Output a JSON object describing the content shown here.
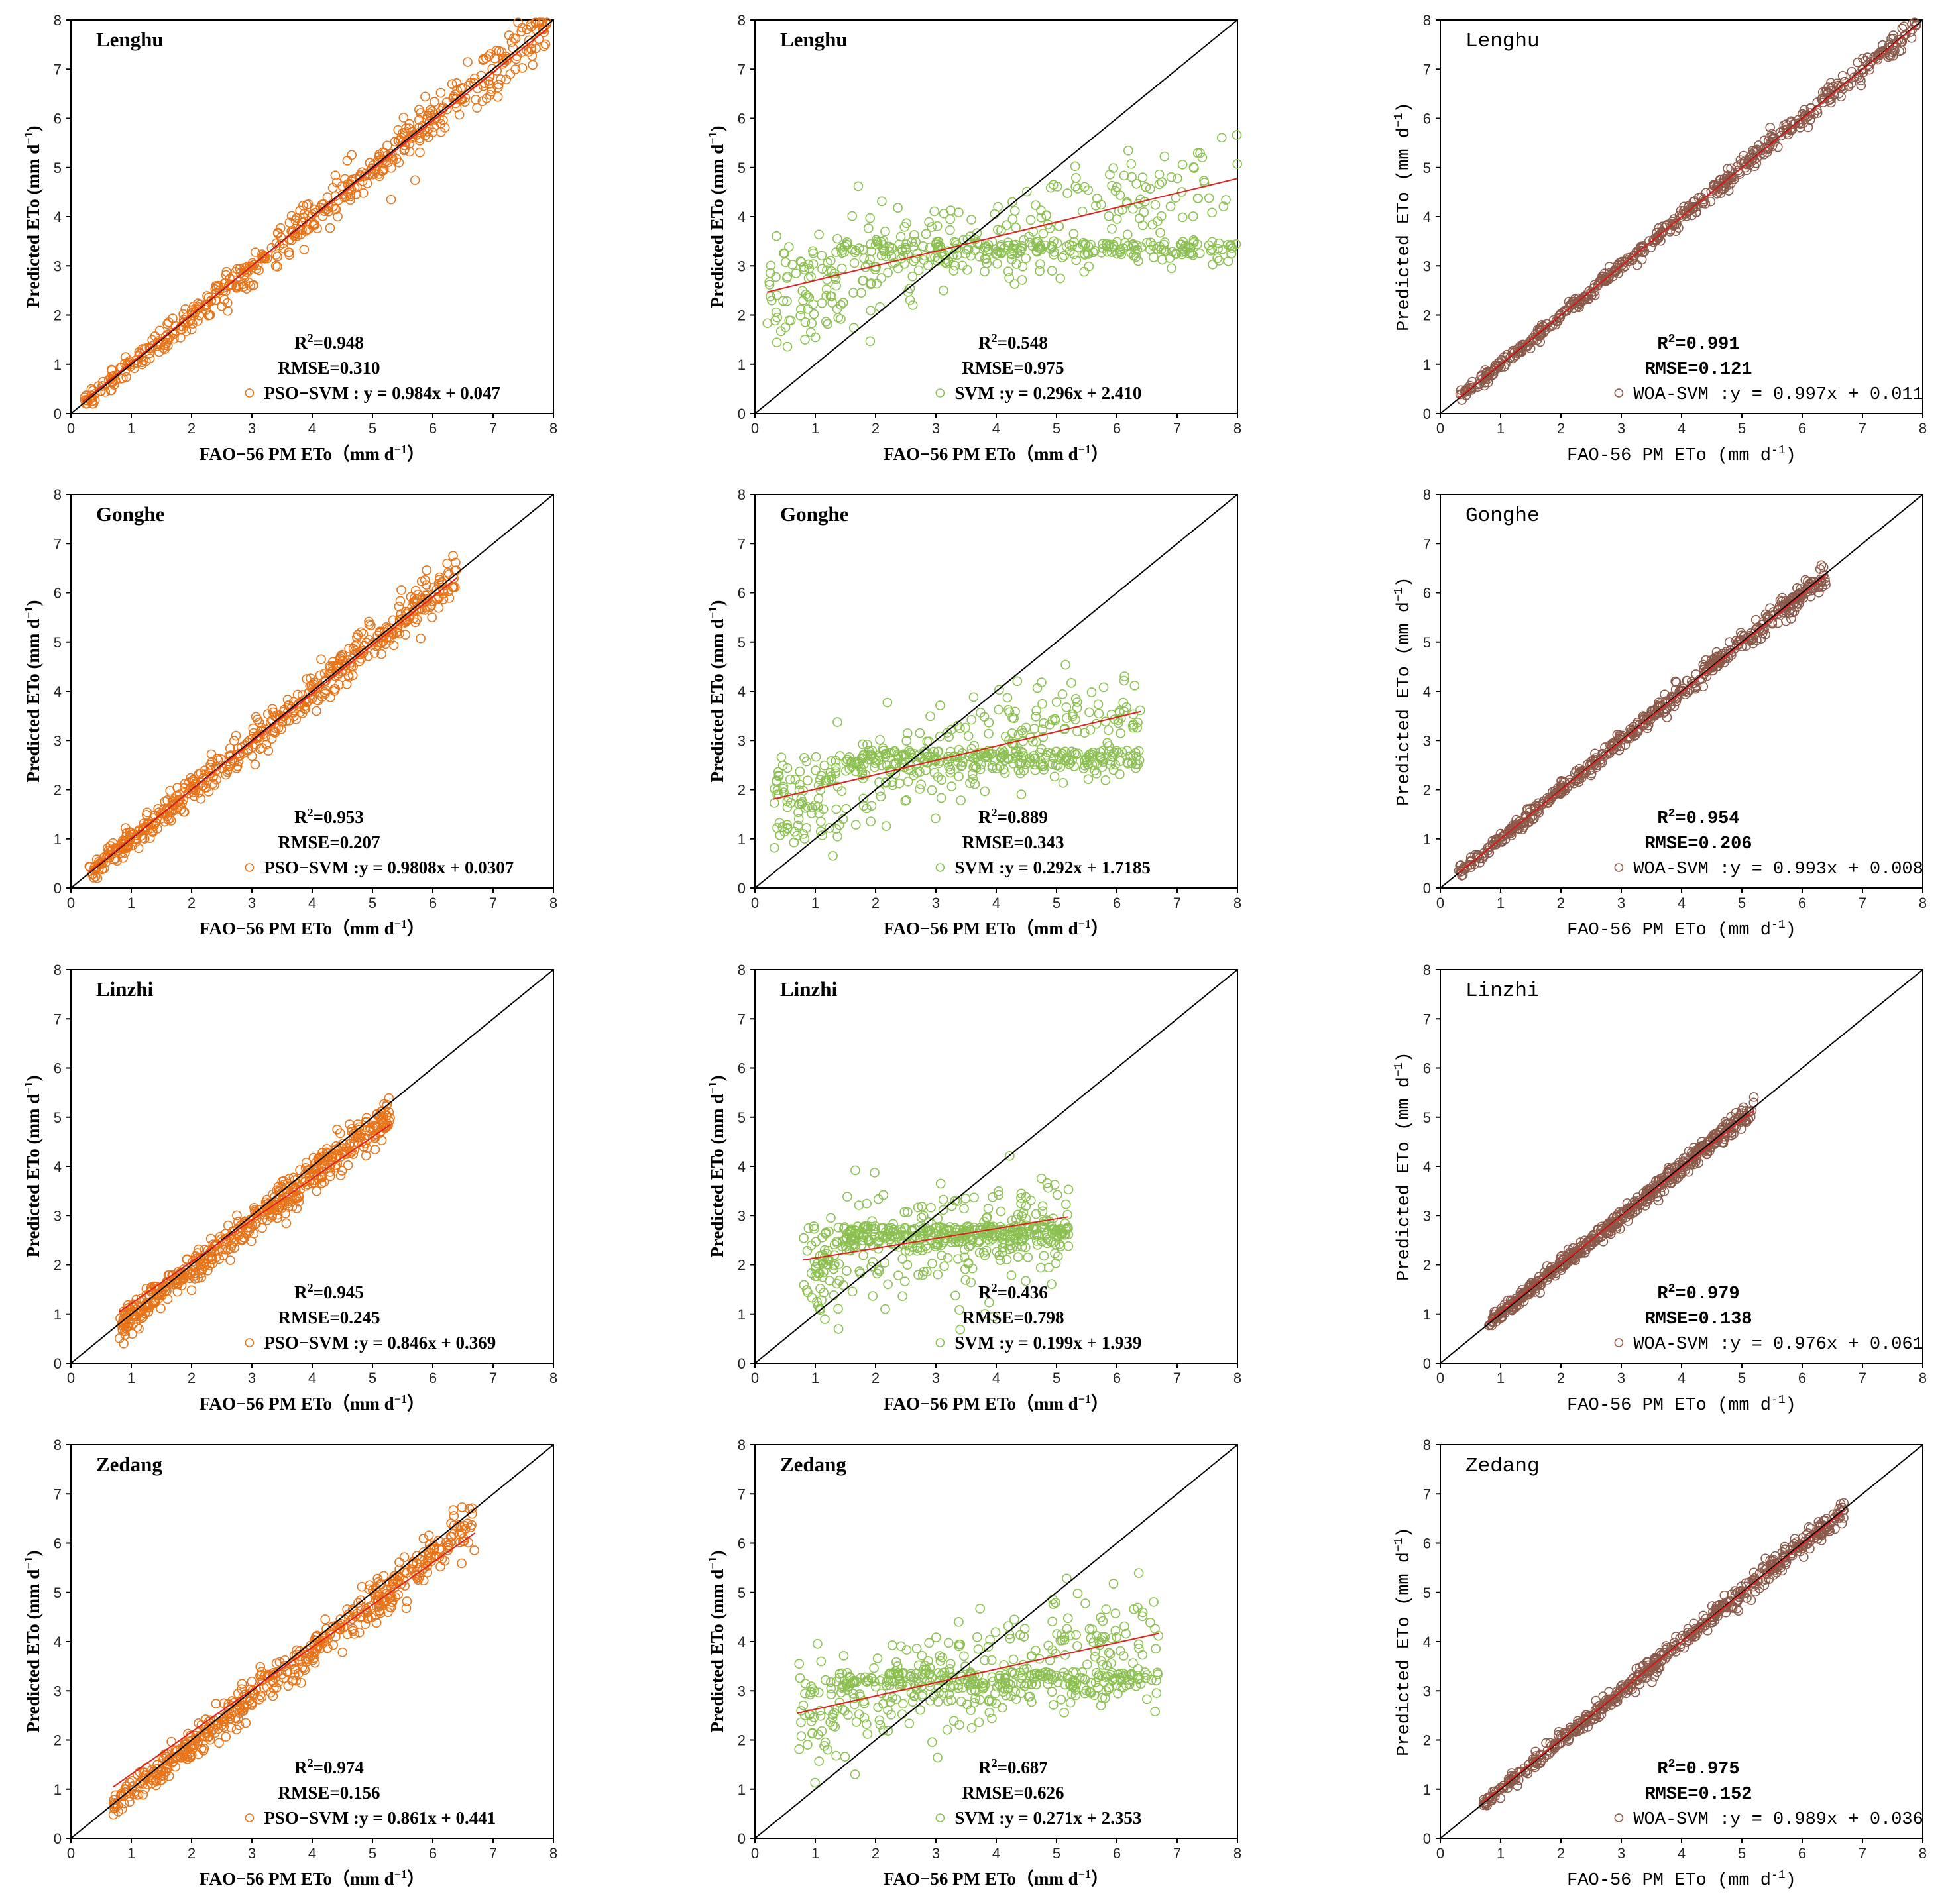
{
  "axes": {
    "ticks": [
      "0",
      "1",
      "2",
      "3",
      "4",
      "5",
      "6",
      "7",
      "8"
    ],
    "xlabel_a": "FAO−56 PM ETo（mm d",
    "xlabel_a_sup": "−1",
    "xlabel_a_tail": "）",
    "xlabel_b": "FAO-56 PM ETo (mm d",
    "xlabel_b_sup": "-1",
    "xlabel_b_tail": ")",
    "ylabel": "Predicted ETo (mm d",
    "ylabel_sup": "−1",
    "ylabel_tail": ")",
    "r2_prefix": "R",
    "r2_sup": "2"
  },
  "colors": {
    "pso": "#e8741a",
    "svm": "#8cc152",
    "woa": "#8b5a4a",
    "fit": "#e02020",
    "oneone": "#000000"
  },
  "chart_data": [
    {
      "station": "Lenghu",
      "model": "PSO-SVM",
      "type": "scatter",
      "r2": "R2=0.948",
      "r2_value": "=0.948",
      "rmse": "RMSE=0.310",
      "legend": "PSO−SVM : y = 0.984x + 0.047",
      "slope": 0.984,
      "intercept": 0.047,
      "xrange": [
        0.2,
        7.9
      ],
      "xlim": [
        0,
        8
      ],
      "ylim": [
        0,
        8
      ]
    },
    {
      "station": "Lenghu",
      "model": "SVM",
      "type": "scatter",
      "r2": "R2=0.548",
      "r2_value": "=0.548",
      "rmse": "RMSE=0.975",
      "legend": "SVM :y = 0.296x + 2.410",
      "slope": 0.296,
      "intercept": 2.41,
      "xrange": [
        0.2,
        8.0
      ],
      "xlim": [
        0,
        8
      ],
      "ylim": [
        0,
        8
      ]
    },
    {
      "station": "Lenghu",
      "model": "WOA-SVM",
      "type": "scatter",
      "r2": "R2=0.991",
      "r2_value": "=0.991",
      "rmse": "RMSE=0.121",
      "legend": "WOA-SVM :y = 0.997x + 0.011",
      "slope": 0.997,
      "intercept": 0.011,
      "xrange": [
        0.3,
        7.9
      ],
      "xlim": [
        0,
        8
      ],
      "ylim": [
        0,
        8
      ]
    },
    {
      "station": "Gonghe",
      "model": "PSO-SVM",
      "type": "scatter",
      "r2": "R2=0.953",
      "r2_value": "=0.953",
      "rmse": "RMSE=0.207",
      "legend": "PSO−SVM :y = 0.9808x + 0.0307",
      "slope": 0.9808,
      "intercept": 0.0307,
      "xrange": [
        0.3,
        6.4
      ],
      "xlim": [
        0,
        8
      ],
      "ylim": [
        0,
        8
      ]
    },
    {
      "station": "Gonghe",
      "model": "SVM",
      "type": "scatter",
      "r2": "R2=0.889",
      "r2_value": "=0.889",
      "rmse": "RMSE=0.343",
      "legend": "SVM :y = 0.292x + 1.7185",
      "slope": 0.292,
      "intercept": 1.7185,
      "xrange": [
        0.3,
        6.4
      ],
      "xlim": [
        0,
        8
      ],
      "ylim": [
        0,
        8
      ]
    },
    {
      "station": "Gonghe",
      "model": "WOA-SVM",
      "type": "scatter",
      "r2": "R2=0.954",
      "r2_value": "=0.954",
      "rmse": "RMSE=0.206",
      "legend": "WOA-SVM :y = 0.993x + 0.008",
      "slope": 0.993,
      "intercept": 0.008,
      "xrange": [
        0.3,
        6.4
      ],
      "xlim": [
        0,
        8
      ],
      "ylim": [
        0,
        8
      ]
    },
    {
      "station": "Linzhi",
      "model": "PSO-SVM",
      "type": "scatter",
      "r2": "R2=0.945",
      "r2_value": "=0.945",
      "rmse": "RMSE=0.245",
      "legend": "PSO−SVM :y = 0.846x + 0.369",
      "slope": 0.846,
      "intercept": 0.369,
      "xrange": [
        0.8,
        5.3
      ],
      "xlim": [
        0,
        8
      ],
      "ylim": [
        0,
        8
      ]
    },
    {
      "station": "Linzhi",
      "model": "SVM",
      "type": "scatter",
      "r2": "R2=0.436",
      "r2_value": "=0.436",
      "rmse": "RMSE=0.798",
      "legend": "SVM :y = 0.199x + 1.939",
      "slope": 0.199,
      "intercept": 1.939,
      "xrange": [
        0.8,
        5.2
      ],
      "xlim": [
        0,
        8
      ],
      "ylim": [
        0,
        8
      ]
    },
    {
      "station": "Linzhi",
      "model": "WOA-SVM",
      "type": "scatter",
      "r2": "R2=0.979",
      "r2_value": "=0.979",
      "rmse": "RMSE=0.138",
      "legend": "WOA-SVM :y = 0.976x + 0.061",
      "slope": 0.976,
      "intercept": 0.061,
      "xrange": [
        0.8,
        5.2
      ],
      "xlim": [
        0,
        8
      ],
      "ylim": [
        0,
        8
      ]
    },
    {
      "station": "Zedang",
      "model": "PSO-SVM",
      "type": "scatter",
      "r2": "R2=0.974",
      "r2_value": "=0.974",
      "rmse": "RMSE=0.156",
      "legend": "PSO−SVM :y = 0.861x + 0.441",
      "slope": 0.861,
      "intercept": 0.441,
      "xrange": [
        0.7,
        6.7
      ],
      "xlim": [
        0,
        8
      ],
      "ylim": [
        0,
        8
      ]
    },
    {
      "station": "Zedang",
      "model": "SVM",
      "type": "scatter",
      "r2": "R2=0.687",
      "r2_value": "=0.687",
      "rmse": "RMSE=0.626",
      "legend": "SVM :y = 0.271x + 2.353",
      "slope": 0.271,
      "intercept": 2.353,
      "xrange": [
        0.7,
        6.7
      ],
      "xlim": [
        0,
        8
      ],
      "ylim": [
        0,
        8
      ]
    },
    {
      "station": "Zedang",
      "model": "WOA-SVM",
      "type": "scatter",
      "r2": "R2=0.975",
      "r2_value": "=0.975",
      "rmse": "RMSE=0.152",
      "legend": "WOA-SVM :y = 0.989x + 0.036",
      "slope": 0.989,
      "intercept": 0.036,
      "xrange": [
        0.7,
        6.7
      ],
      "xlim": [
        0,
        8
      ],
      "ylim": [
        0,
        8
      ]
    }
  ]
}
